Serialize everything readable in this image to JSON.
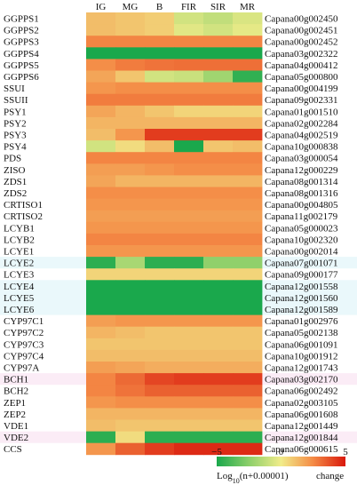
{
  "chart_data": {
    "type": "heatmap",
    "columns": [
      "IG",
      "MG",
      "B",
      "FIR",
      "SIR",
      "MR"
    ],
    "rows": [
      {
        "gene": "GGPPS1",
        "id": "Capana00g002450",
        "values": [
          1.2,
          1.0,
          0.8,
          -0.8,
          -1.2,
          -0.6
        ]
      },
      {
        "gene": "GGPPS2",
        "id": "Capana00g002451",
        "values": [
          1.2,
          1.0,
          0.8,
          -0.4,
          -0.8,
          -0.3
        ]
      },
      {
        "gene": "GGPPS3",
        "id": "Capana00g002452",
        "values": [
          2.6,
          2.6,
          2.6,
          2.6,
          2.6,
          2.6
        ]
      },
      {
        "gene": "GGPPS4",
        "id": "Capana03g002322",
        "values": [
          -5,
          -5,
          -5,
          -5,
          -5,
          -5
        ]
      },
      {
        "gene": "GGPPS5",
        "id": "Capana04g000412",
        "values": [
          2.4,
          2.8,
          3.0,
          3.1,
          3.1,
          3.1
        ]
      },
      {
        "gene": "GGPPS6",
        "id": "Capana05g000800",
        "values": [
          1.8,
          1.0,
          -0.8,
          -1.0,
          -2.0,
          -4.5
        ]
      },
      {
        "gene": "SSUI",
        "id": "Capana00g004199",
        "values": [
          2.2,
          2.4,
          2.4,
          2.4,
          2.4,
          2.4
        ]
      },
      {
        "gene": "SSUII",
        "id": "Capana09g002331",
        "values": [
          2.8,
          2.8,
          2.8,
          2.8,
          2.8,
          2.8
        ]
      },
      {
        "gene": "PSY1",
        "id": "Capana01g001510",
        "values": [
          1.8,
          1.4,
          1.0,
          0.6,
          0.6,
          0.6
        ]
      },
      {
        "gene": "PSY2",
        "id": "Capana02g002284",
        "values": [
          1.4,
          1.4,
          1.4,
          1.4,
          1.4,
          1.4
        ]
      },
      {
        "gene": "PSY3",
        "id": "Capana04g002519",
        "values": [
          1.2,
          2.2,
          4.2,
          4.2,
          4.2,
          4.2
        ]
      },
      {
        "gene": "PSY4",
        "id": "Capana10g000838",
        "values": [
          -0.8,
          0.4,
          1.2,
          -5,
          1.0,
          1.2
        ]
      },
      {
        "gene": "PDS",
        "id": "Capana03g000054",
        "values": [
          2.6,
          2.6,
          2.6,
          2.6,
          2.6,
          2.6
        ]
      },
      {
        "gene": "ZISO",
        "id": "Capana12g000229",
        "values": [
          2.0,
          2.0,
          2.2,
          2.4,
          2.4,
          2.4
        ]
      },
      {
        "gene": "ZDS1",
        "id": "Capana08g001314",
        "values": [
          1.8,
          1.4,
          1.4,
          1.4,
          1.4,
          1.4
        ]
      },
      {
        "gene": "ZDS2",
        "id": "Capana08g001316",
        "values": [
          2.4,
          2.4,
          2.4,
          2.4,
          2.4,
          2.4
        ]
      },
      {
        "gene": "CRTISO1",
        "id": "Capana00g004805",
        "values": [
          2.2,
          2.2,
          2.2,
          2.2,
          2.2,
          2.2
        ]
      },
      {
        "gene": "CRTISO2",
        "id": "Capana11g002179",
        "values": [
          2.0,
          2.0,
          2.0,
          2.0,
          2.0,
          2.0
        ]
      },
      {
        "gene": "LCYB1",
        "id": "Capana05g000023",
        "values": [
          2.2,
          2.2,
          2.2,
          2.2,
          2.2,
          2.2
        ]
      },
      {
        "gene": "LCYB2",
        "id": "Capana10g002320",
        "values": [
          2.6,
          2.6,
          2.6,
          2.6,
          2.6,
          2.6
        ]
      },
      {
        "gene": "LCYE1",
        "id": "Capana00g002014",
        "values": [
          2.2,
          2.2,
          2.2,
          2.2,
          2.2,
          2.2
        ]
      },
      {
        "gene": "LCYE2",
        "id": "Capana07g001071",
        "values": [
          -4.6,
          -1.8,
          -4.6,
          -4.6,
          -2.4,
          -2.4
        ]
      },
      {
        "gene": "LCYE3",
        "id": "Capana09g000177",
        "values": [
          0.6,
          0.6,
          0.6,
          0.6,
          0.6,
          0.6
        ]
      },
      {
        "gene": "LCYE4",
        "id": "Capana12g001558",
        "values": [
          -5,
          -5,
          -5,
          -5,
          -5,
          -5
        ]
      },
      {
        "gene": "LCYE5",
        "id": "Capana12g001560",
        "values": [
          -5,
          -5,
          -5,
          -5,
          -5,
          -5
        ]
      },
      {
        "gene": "LCYE6",
        "id": "Capana12g001589",
        "values": [
          -5,
          -5,
          -5,
          -5,
          -5,
          -5
        ]
      },
      {
        "gene": "CYP97C1",
        "id": "Capana01g002976",
        "values": [
          2.0,
          2.2,
          2.2,
          2.2,
          2.2,
          2.2
        ]
      },
      {
        "gene": "CYP97C2",
        "id": "Capana05g002138",
        "values": [
          1.4,
          1.2,
          1.0,
          1.0,
          1.0,
          1.0
        ]
      },
      {
        "gene": "CYP97C3",
        "id": "Capana06g001091",
        "values": [
          1.0,
          1.0,
          1.0,
          1.0,
          1.0,
          1.0
        ]
      },
      {
        "gene": "CYP97C4",
        "id": "Capana10g001912",
        "values": [
          1.2,
          1.2,
          1.2,
          1.2,
          1.2,
          1.2
        ]
      },
      {
        "gene": "CYP97A",
        "id": "Capana12g001743",
        "values": [
          2.0,
          1.8,
          1.6,
          1.6,
          1.6,
          1.6
        ]
      },
      {
        "gene": "BCH1",
        "id": "Capana03g002170",
        "values": [
          2.6,
          3.2,
          4.0,
          4.2,
          4.2,
          4.2
        ]
      },
      {
        "gene": "BCH2",
        "id": "Capana06g002492",
        "values": [
          2.6,
          3.0,
          3.4,
          3.4,
          3.4,
          3.4
        ]
      },
      {
        "gene": "ZEP1",
        "id": "Capana02g003105",
        "values": [
          2.2,
          2.4,
          2.4,
          2.4,
          2.4,
          2.4
        ]
      },
      {
        "gene": "ZEP2",
        "id": "Capana06g001608",
        "values": [
          1.4,
          1.4,
          1.4,
          1.4,
          1.4,
          1.4
        ]
      },
      {
        "gene": "VDE1",
        "id": "Capana12g001449",
        "values": [
          1.2,
          1.0,
          1.0,
          1.0,
          1.0,
          1.0
        ]
      },
      {
        "gene": "VDE2",
        "id": "Capana12g001844",
        "values": [
          -4.6,
          0.4,
          -4.6,
          -4.6,
          -4.6,
          -4.6
        ]
      },
      {
        "gene": "CCS",
        "id": "Capana06g000615",
        "values": [
          2.2,
          3.4,
          4.2,
          4.6,
          4.6,
          4.6
        ]
      }
    ],
    "color_scale": {
      "min": -5,
      "max": 5,
      "ticks": [
        -5,
        0,
        5
      ],
      "stops": [
        {
          "value": -5,
          "color": "#1aa84c"
        },
        {
          "value": -2.5,
          "color": "#8ccf6a"
        },
        {
          "value": 0,
          "color": "#f1ec8a"
        },
        {
          "value": 2.5,
          "color": "#f48a45"
        },
        {
          "value": 5,
          "color": "#d9180c"
        }
      ],
      "label": "Log10(n+0.00001)",
      "label_main": "Log",
      "label_sub": "10",
      "label_rest": "(n+0.00001)",
      "change_label": "change"
    }
  }
}
